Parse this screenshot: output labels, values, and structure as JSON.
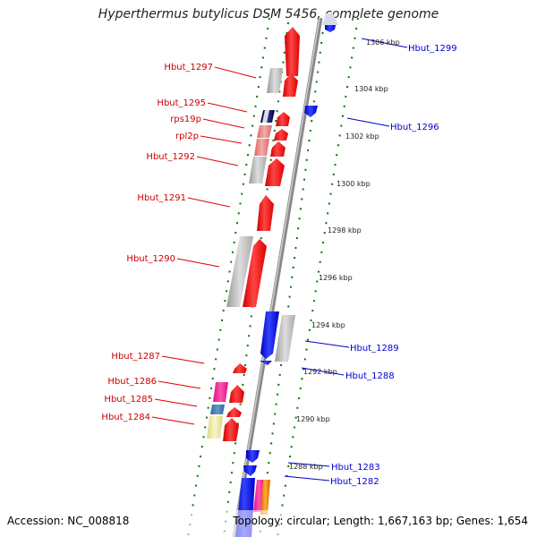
{
  "title": "Hyperthermus butylicus DSM 5456, complete genome",
  "accession": "Accession: NC_008818",
  "topology": "Topology: circular; Length: 1,667,163 bp; Genes: 1,654",
  "colors": {
    "forward": "#ff0000",
    "reverse": "#0000ff",
    "axis": "#888888",
    "dotted": "#007700",
    "gene_grey": "#bbbbbb",
    "pink": "#ff3399",
    "lightpink": "#ee8888",
    "steelblue": "#4477aa",
    "khaki": "#eee8a0",
    "orange": "#ff8800"
  },
  "kbp_labels": [
    "1306 kbp",
    "1304 kbp",
    "1302 kbp",
    "1300 kbp",
    "1298 kbp",
    "1296 kbp",
    "1294 kbp",
    "1292 kbp",
    "1290 kbp",
    "1288 kbp"
  ],
  "left_labels": [
    "Hbut_1297",
    "Hbut_1295",
    "rps19p",
    "rpl2p",
    "Hbut_1292",
    "Hbut_1291",
    "Hbut_1290",
    "Hbut_1287",
    "Hbut_1286",
    "Hbut_1285",
    "Hbut_1284"
  ],
  "right_labels": [
    "Hbut_1299",
    "Hbut_1296",
    "Hbut_1289",
    "Hbut_1288",
    "Hbut_1283",
    "Hbut_1282"
  ]
}
